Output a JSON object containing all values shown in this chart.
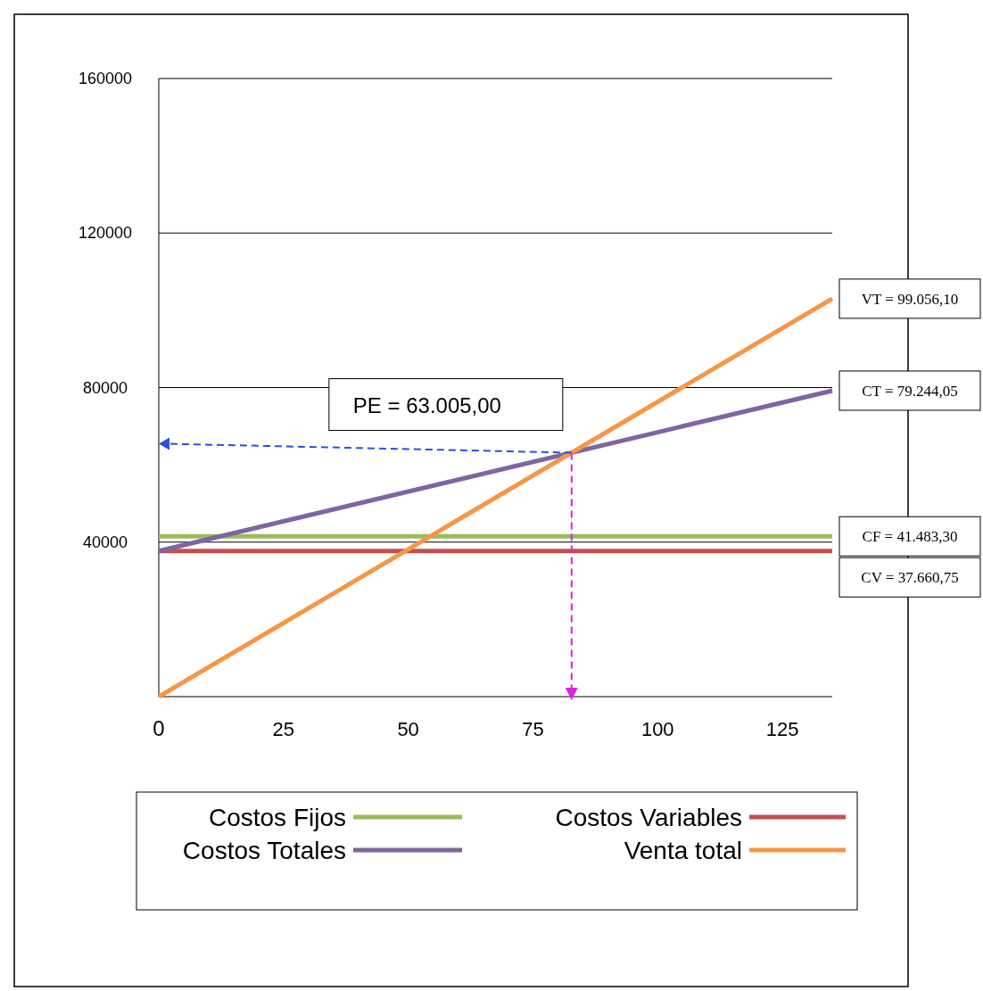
{
  "chart_data": {
    "type": "line",
    "x": [
      0,
      135
    ],
    "series": [
      {
        "name": "Costos Fijos",
        "color": "#9bbb59",
        "values": [
          41500,
          41500
        ]
      },
      {
        "name": "Costos Variables",
        "color": "#c0504d",
        "values": [
          37700,
          37700
        ]
      },
      {
        "name": "Costos Totales",
        "color": "#8064a2",
        "values": [
          37700,
          79200
        ]
      },
      {
        "name": "Venta total",
        "color": "#f79646",
        "values": [
          0,
          103000
        ]
      }
    ],
    "xlim": [
      0,
      135
    ],
    "ylim": [
      0,
      160000
    ],
    "xticks": [
      0,
      25,
      50,
      75,
      100,
      125
    ],
    "yticks": [
      40000,
      80000,
      120000,
      160000
    ],
    "grid": "y",
    "legend": "bottom",
    "marker": "none",
    "line_style": "solid",
    "annotations": [
      "PE = 63.005,00",
      "VT = 99.056,10",
      "CT = 79.244,05",
      "CF = 41.483,30",
      "CV = 37.660,75"
    ]
  }
}
